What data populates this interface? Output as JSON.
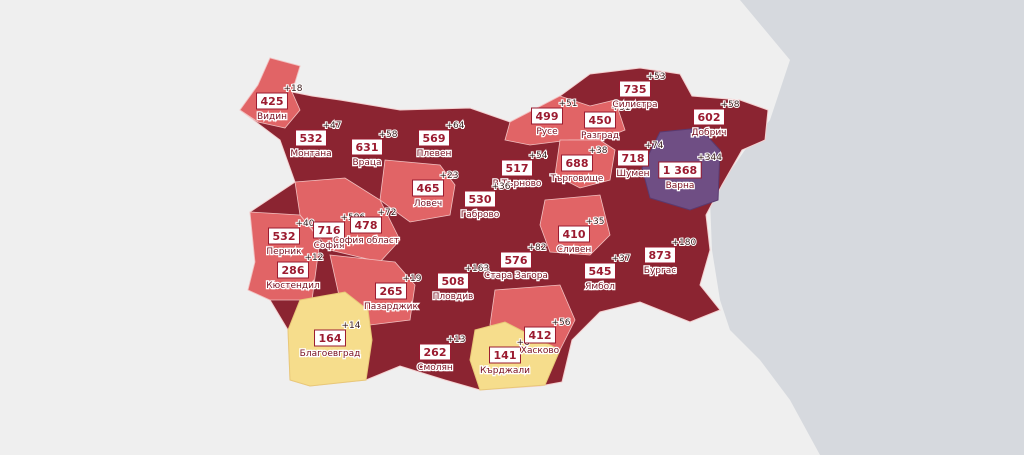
{
  "regions": [
    {
      "name": "Видин",
      "value": "425",
      "delta": "+18"
    },
    {
      "name": "Монтана",
      "value": "532",
      "delta": "+47"
    },
    {
      "name": "Враца",
      "value": "631",
      "delta": "+58"
    },
    {
      "name": "Плевен",
      "value": "569",
      "delta": "+64"
    },
    {
      "name": "Русе",
      "value": "499",
      "delta": "+51"
    },
    {
      "name": "Разград",
      "value": "450",
      "delta": "+31"
    },
    {
      "name": "Силистра",
      "value": "735",
      "delta": "+53"
    },
    {
      "name": "Добрич",
      "value": "602",
      "delta": "+58"
    },
    {
      "name": "Търговище",
      "value": "688",
      "delta": "+38"
    },
    {
      "name": "Шумен",
      "value": "718",
      "delta": "+74"
    },
    {
      "name": "Варна",
      "value": "1 368",
      "delta": "+344"
    },
    {
      "name": "В.Търново",
      "value": "517",
      "delta": "+54"
    },
    {
      "name": "Габрово",
      "value": "530",
      "delta": "+36"
    },
    {
      "name": "Ловеч",
      "value": "465",
      "delta": "+23"
    },
    {
      "name": "Перник",
      "value": "532",
      "delta": "+40"
    },
    {
      "name": "София",
      "value": "716",
      "delta": "+596"
    },
    {
      "name": "София област",
      "value": "478",
      "delta": "+72"
    },
    {
      "name": "Кюстендил",
      "value": "286",
      "delta": "+12"
    },
    {
      "name": "Пазарджик",
      "value": "265",
      "delta": "+19"
    },
    {
      "name": "Пловдив",
      "value": "508",
      "delta": "+163"
    },
    {
      "name": "Стара Загора",
      "value": "576",
      "delta": "+82"
    },
    {
      "name": "Сливен",
      "value": "410",
      "delta": "+35"
    },
    {
      "name": "Ямбол",
      "value": "545",
      "delta": "+37"
    },
    {
      "name": "Бургас",
      "value": "873",
      "delta": "+180"
    },
    {
      "name": "Благоевград",
      "value": "164",
      "delta": "+14"
    },
    {
      "name": "Смолян",
      "value": "262",
      "delta": "+13"
    },
    {
      "name": "Кърджали",
      "value": "141",
      "delta": "+6"
    },
    {
      "name": "Хасково",
      "value": "412",
      "delta": "+56"
    }
  ]
}
